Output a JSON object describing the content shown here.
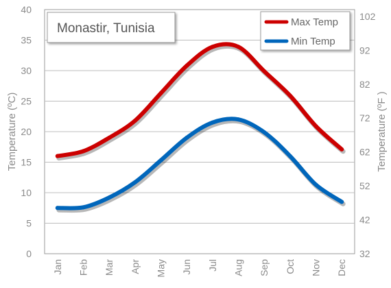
{
  "chart_data": {
    "type": "line",
    "title": "Monastir, Tunisia",
    "categories": [
      "Jan",
      "Feb",
      "Mar",
      "Apr",
      "May",
      "Jun",
      "Jul",
      "Aug",
      "Sep",
      "Oct",
      "Nov",
      "Dec"
    ],
    "series": [
      {
        "name": "Max Temp",
        "color": "#cc0000",
        "values": [
          16.0,
          16.8,
          19.0,
          21.8,
          26.3,
          30.8,
          33.9,
          33.9,
          29.9,
          25.9,
          20.9,
          17.1
        ]
      },
      {
        "name": "Min Temp",
        "color": "#0066bb",
        "values": [
          7.5,
          7.6,
          9.2,
          11.7,
          15.3,
          19.0,
          21.5,
          22.0,
          19.9,
          16.0,
          11.3,
          8.5
        ]
      }
    ],
    "ylabel": "Temperature (ºC)",
    "ylabel_right": "Temperature (ºF )",
    "ylim": [
      0,
      40
    ],
    "yticks": [
      "0",
      "5",
      "10",
      "15",
      "20",
      "25",
      "30",
      "35",
      "40"
    ],
    "ylim_right": [
      32,
      104
    ],
    "yticks_right": [
      "32",
      "42",
      "52",
      "62",
      "72",
      "82",
      "92",
      "102"
    ],
    "grid": true,
    "legend_position": "top-right"
  }
}
